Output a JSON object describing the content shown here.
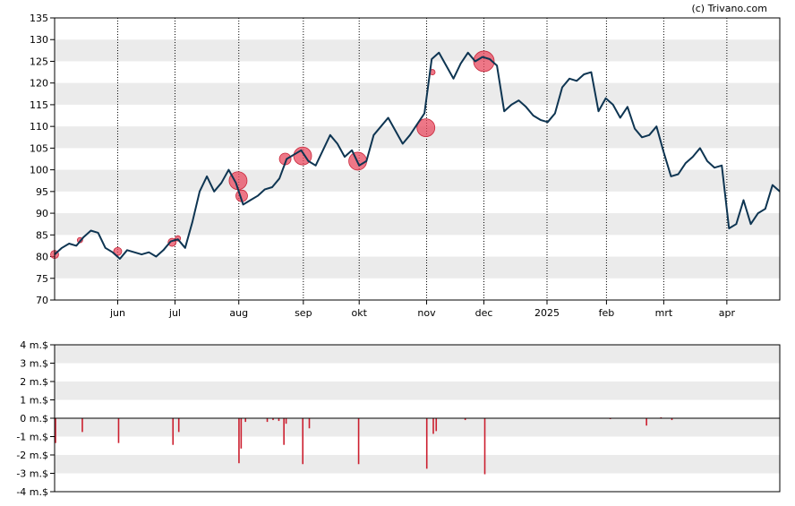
{
  "credit": "(c) Trivano.com",
  "colors": {
    "price_line": "#0e3552",
    "marker": "#e84a5f",
    "bar": "#cc1f2f",
    "band": "#ebebeb",
    "axis": "#000000"
  },
  "chart_data": [
    {
      "type": "line",
      "title": "",
      "xlabel": "",
      "ylabel": "",
      "ylim": [
        70,
        135
      ],
      "yticks": [
        70,
        75,
        80,
        85,
        90,
        95,
        100,
        105,
        110,
        115,
        120,
        125,
        130,
        135
      ],
      "grid": "horizontal bands, dotted vertical month lines",
      "month_labels": [
        "jun",
        "jul",
        "aug",
        "sep",
        "okt",
        "nov",
        "dec",
        "2025",
        "feb",
        "mrt",
        "apr"
      ],
      "month_positions": [
        0.087,
        0.166,
        0.254,
        0.343,
        0.42,
        0.513,
        0.592,
        0.679,
        0.761,
        0.84,
        0.927
      ],
      "x": [
        0.0,
        0.01,
        0.02,
        0.03,
        0.04,
        0.05,
        0.06,
        0.07,
        0.08,
        0.09,
        0.1,
        0.11,
        0.12,
        0.13,
        0.14,
        0.15,
        0.16,
        0.17,
        0.18,
        0.19,
        0.2,
        0.21,
        0.22,
        0.23,
        0.24,
        0.25,
        0.26,
        0.27,
        0.28,
        0.29,
        0.3,
        0.31,
        0.32,
        0.33,
        0.34,
        0.35,
        0.36,
        0.37,
        0.38,
        0.39,
        0.4,
        0.41,
        0.42,
        0.43,
        0.44,
        0.45,
        0.46,
        0.47,
        0.48,
        0.49,
        0.5,
        0.51,
        0.52,
        0.53,
        0.54,
        0.55,
        0.56,
        0.57,
        0.58,
        0.59,
        0.6,
        0.61,
        0.62,
        0.63,
        0.64,
        0.65,
        0.66,
        0.67,
        0.68,
        0.69,
        0.7,
        0.71,
        0.72,
        0.73,
        0.74,
        0.75,
        0.76,
        0.77,
        0.78,
        0.79,
        0.8,
        0.81,
        0.82,
        0.83,
        0.84,
        0.85,
        0.86,
        0.87,
        0.88,
        0.89,
        0.9,
        0.91,
        0.92,
        0.93,
        0.94,
        0.95,
        0.96,
        0.97,
        0.98,
        0.99,
        1.0
      ],
      "series": [
        {
          "values": [
            80.5,
            82.0,
            83.0,
            82.5,
            84.5,
            86.0,
            85.5,
            82.0,
            81.0,
            79.5,
            81.5,
            81.0,
            80.5,
            81.0,
            80.0,
            81.5,
            83.5,
            84.0,
            82.0,
            88.0,
            95.0,
            98.5,
            95.0,
            97.0,
            100.0,
            97.0,
            92.0,
            93.0,
            94.0,
            95.5,
            96.0,
            98.0,
            102.5,
            103.5,
            104.5,
            102.0,
            101.0,
            104.5,
            108.0,
            106.0,
            103.0,
            104.5,
            101.0,
            102.0,
            108.0,
            110.0,
            112.0,
            109.0,
            106.0,
            108.0,
            110.5,
            113.0,
            125.5,
            127.0,
            124.0,
            121.0,
            124.5,
            127.0,
            125.0,
            126.0,
            125.5,
            124.0,
            113.5,
            115.0,
            116.0,
            114.5,
            112.5,
            111.5,
            111.0,
            113.0,
            119.0,
            121.0,
            120.5,
            122.0,
            122.5,
            113.5,
            116.5,
            115.0,
            112.0,
            114.5,
            109.5,
            107.5,
            108.0,
            110.0,
            104.0,
            98.5,
            99.0,
            101.5,
            103.0,
            105.0,
            102.0,
            100.5,
            101.0,
            86.5,
            87.5,
            93.0,
            87.5,
            90.0,
            91.0,
            96.5,
            95.0
          ]
        }
      ],
      "markers": [
        {
          "x": 0.0,
          "y": 80.5,
          "size": "small"
        },
        {
          "x": 0.035,
          "y": 83.8,
          "size": "tiny"
        },
        {
          "x": 0.087,
          "y": 81.2,
          "size": "small"
        },
        {
          "x": 0.162,
          "y": 83.3,
          "size": "small"
        },
        {
          "x": 0.17,
          "y": 84.2,
          "size": "tiny"
        },
        {
          "x": 0.253,
          "y": 97.5,
          "size": "large"
        },
        {
          "x": 0.258,
          "y": 94.0,
          "size": "medium"
        },
        {
          "x": 0.318,
          "y": 102.5,
          "size": "medium"
        },
        {
          "x": 0.342,
          "y": 103.2,
          "size": "large"
        },
        {
          "x": 0.418,
          "y": 102.0,
          "size": "large"
        },
        {
          "x": 0.512,
          "y": 109.7,
          "size": "large"
        },
        {
          "x": 0.521,
          "y": 122.5,
          "size": "tiny"
        },
        {
          "x": 0.592,
          "y": 125.0,
          "size": "xlarge"
        }
      ]
    },
    {
      "type": "bar",
      "title": "",
      "xlabel": "",
      "ylabel": "",
      "ylim": [
        -4,
        4
      ],
      "ytick_labels": [
        "4 m.$",
        "3 m.$",
        "2 m.$",
        "1 m.$",
        "0 m.$",
        "-1 m.$",
        "-2 m.$",
        "-3 m.$",
        "-4 m.$"
      ],
      "yticks": [
        4,
        3,
        2,
        1,
        0,
        -1,
        -2,
        -3,
        -4
      ],
      "bars": [
        {
          "x": 0.0,
          "value": -1.35
        },
        {
          "x": 0.037,
          "value": -0.75
        },
        {
          "x": 0.087,
          "value": -1.35
        },
        {
          "x": 0.162,
          "value": -1.45
        },
        {
          "x": 0.17,
          "value": -0.75
        },
        {
          "x": 0.253,
          "value": -2.45
        },
        {
          "x": 0.256,
          "value": -1.65
        },
        {
          "x": 0.262,
          "value": -0.2
        },
        {
          "x": 0.292,
          "value": -0.2
        },
        {
          "x": 0.3,
          "value": -0.1
        },
        {
          "x": 0.308,
          "value": -0.15
        },
        {
          "x": 0.315,
          "value": -1.45
        },
        {
          "x": 0.318,
          "value": -0.3
        },
        {
          "x": 0.341,
          "value": -2.5
        },
        {
          "x": 0.35,
          "value": -0.55
        },
        {
          "x": 0.418,
          "value": -2.5
        },
        {
          "x": 0.512,
          "value": -2.75
        },
        {
          "x": 0.521,
          "value": -0.85
        },
        {
          "x": 0.525,
          "value": -0.7
        },
        {
          "x": 0.565,
          "value": -0.1
        },
        {
          "x": 0.592,
          "value": -3.05
        },
        {
          "x": 0.765,
          "value": -0.05
        },
        {
          "x": 0.815,
          "value": -0.4
        },
        {
          "x": 0.835,
          "value": 0.05
        },
        {
          "x": 0.85,
          "value": -0.1
        }
      ]
    }
  ]
}
